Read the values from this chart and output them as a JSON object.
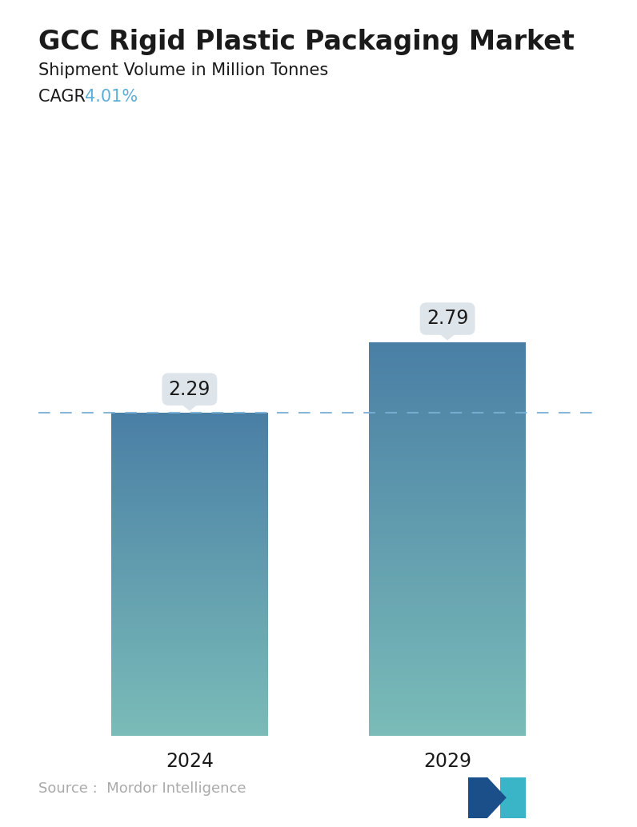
{
  "title": "GCC Rigid Plastic Packaging Market",
  "subtitle": "Shipment Volume in Million Tonnes",
  "cagr_label": "CAGR ",
  "cagr_value": "4.01%",
  "cagr_color": "#5bafd6",
  "categories": [
    "2024",
    "2029"
  ],
  "values": [
    2.29,
    2.79
  ],
  "bar_color_top": "#4a7fa5",
  "bar_color_bottom": "#7abcb8",
  "dashed_line_color": "#7aafd4",
  "dashed_line_value": 2.29,
  "tooltip_bg": "#dde4ea",
  "tooltip_text_color": "#1a1a1a",
  "source_text": "Source :  Mordor Intelligence",
  "source_color": "#aaaaaa",
  "background_color": "#ffffff",
  "title_fontsize": 24,
  "subtitle_fontsize": 15,
  "cagr_fontsize": 15,
  "tick_fontsize": 17,
  "tooltip_fontsize": 17,
  "source_fontsize": 13,
  "bar_width": 0.28,
  "ylim": [
    0,
    3.4
  ],
  "x_positions": [
    0.27,
    0.73
  ]
}
